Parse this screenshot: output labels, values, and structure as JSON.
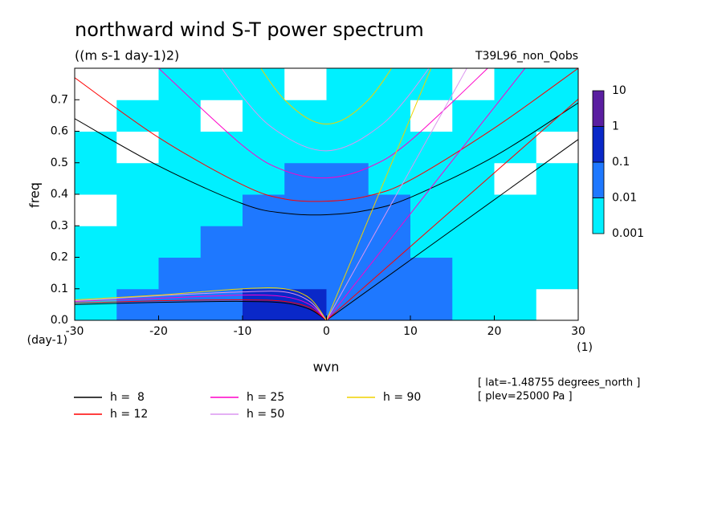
{
  "chart_data": {
    "type": "contour",
    "title": "northward wind S-T power spectrum",
    "subtitle": "((m s-1 day-1)2)",
    "run_label": "T39L96_non_Qobs",
    "x_label": "wvn",
    "x_unit": "(1)",
    "y_label": "freq",
    "y_unit": "(day-1)",
    "xlim": [
      -30,
      30
    ],
    "xticks": [
      -30,
      -20,
      -10,
      0,
      10,
      20,
      30
    ],
    "ylim": [
      0,
      0.8
    ],
    "yticks": [
      {
        "value": 0,
        "label": "0.0"
      },
      0.1,
      0.2,
      0.3,
      0.4,
      0.5,
      0.6,
      0.7
    ],
    "x": [
      -27.5,
      -22.5,
      -17.5,
      -12.5,
      -7.5,
      -2.5,
      2.5,
      7.5,
      12.5,
      17.5,
      22.5,
      27.5
    ],
    "y": [
      0.05,
      0.15,
      0.25,
      0.35,
      0.45,
      0.55,
      0.65,
      0.75
    ],
    "z": [
      [
        0.005,
        0.02,
        0.05,
        0.05,
        0.5,
        0.5,
        0.05,
        0.05,
        0.02,
        0.005,
        0.005,
        0.0005
      ],
      [
        0.005,
        0.005,
        0.02,
        0.05,
        0.05,
        0.05,
        0.05,
        0.05,
        0.02,
        0.005,
        0.005,
        0.005
      ],
      [
        0.005,
        0.005,
        0.005,
        0.02,
        0.05,
        0.05,
        0.05,
        0.05,
        0.005,
        0.005,
        0.005,
        0.005
      ],
      [
        0.0005,
        0.005,
        0.005,
        0.005,
        0.02,
        0.05,
        0.05,
        0.02,
        0.005,
        0.005,
        0.005,
        0.005
      ],
      [
        0.005,
        0.005,
        0.005,
        0.005,
        0.005,
        0.02,
        0.02,
        0.005,
        0.005,
        0.005,
        0.0005,
        0.005
      ],
      [
        0.005,
        0.0005,
        0.005,
        0.005,
        0.005,
        0.005,
        0.005,
        0.005,
        0.005,
        0.005,
        0.005,
        0.0005
      ],
      [
        0.0005,
        0.005,
        0.005,
        0.0005,
        0.005,
        0.005,
        0.005,
        0.005,
        0.0005,
        0.005,
        0.005,
        0.005
      ],
      [
        0.0005,
        0.0005,
        0.005,
        0.005,
        0.005,
        0.0005,
        0.005,
        0.005,
        0.005,
        0.0005,
        0.005,
        0.005
      ]
    ],
    "levels": [
      0.001,
      0.01,
      0.1,
      1,
      10
    ],
    "level_colors": [
      "#00f0ff",
      "#1e78ff",
      "#0a28c8",
      "#5a1ea0"
    ],
    "series": [
      {
        "name": "h =  8",
        "color": "#000000",
        "er": {
          "x": [
            -30,
            -20,
            -10,
            -5,
            -2,
            0
          ],
          "values": [
            0.05,
            0.057,
            0.06,
            0.055,
            0.035,
            0
          ]
        },
        "ig": {
          "x": [
            -30,
            -20,
            -10,
            -5,
            0,
            5,
            10,
            20,
            30
          ],
          "values": [
            0.64,
            0.49,
            0.37,
            0.34,
            0.335,
            0.35,
            0.39,
            0.52,
            0.69
          ]
        },
        "kelvin": {
          "x": [
            0,
            30
          ],
          "values": [
            0,
            0.574
          ]
        }
      },
      {
        "name": "h = 12",
        "color": "#ff0000",
        "er": {
          "x": [
            -30,
            -20,
            -10,
            -5,
            -2,
            0
          ],
          "values": [
            0.055,
            0.062,
            0.065,
            0.06,
            0.04,
            0
          ]
        },
        "ig": {
          "x": [
            -30,
            -20,
            -10,
            -5,
            0,
            5,
            10,
            20,
            30
          ],
          "values": [
            0.77,
            0.58,
            0.43,
            0.385,
            0.378,
            0.395,
            0.445,
            0.61,
            0.8
          ]
        },
        "kelvin": {
          "x": [
            0,
            30
          ],
          "values": [
            0,
            0.702
          ]
        }
      },
      {
        "name": "h = 25",
        "color": "#ff00c8",
        "er": {
          "x": [
            -30,
            -20,
            -10,
            -5,
            -2,
            0
          ],
          "values": [
            0.06,
            0.07,
            0.08,
            0.075,
            0.05,
            0
          ]
        },
        "ig": {
          "x": [
            -20,
            -10,
            -5,
            0,
            5,
            10,
            20
          ],
          "values": [
            0.8,
            0.555,
            0.475,
            0.452,
            0.485,
            0.57,
            0.82
          ]
        },
        "kelvin": {
          "x": [
            0,
            30
          ],
          "values": [
            0,
            1.014
          ]
        }
      },
      {
        "name": "h = 50",
        "color": "#dc96f0",
        "er": {
          "x": [
            -30,
            -20,
            -10,
            -5,
            -2,
            0
          ],
          "values": [
            0.062,
            0.078,
            0.09,
            0.09,
            0.06,
            0
          ]
        },
        "ig": {
          "x": [
            -20,
            -10,
            -5,
            0,
            5,
            10,
            20
          ],
          "values": [
            1.09,
            0.71,
            0.585,
            0.538,
            0.59,
            0.72,
            1.1
          ]
        },
        "kelvin": {
          "x": [
            0,
            30
          ],
          "values": [
            0,
            1.434
          ]
        }
      },
      {
        "name": "h = 90",
        "color": "#f0d200",
        "er": {
          "x": [
            -30,
            -20,
            -10,
            -5,
            -2,
            0
          ],
          "values": [
            0.065,
            0.08,
            0.1,
            0.1,
            0.07,
            0
          ]
        },
        "ig": {
          "x": [
            -10,
            -5,
            0,
            5,
            10
          ],
          "values": [
            0.89,
            0.7,
            0.623,
            0.7,
            0.895
          ]
        },
        "kelvin": {
          "x": [
            0,
            30
          ],
          "values": [
            0,
            1.926
          ]
        }
      }
    ],
    "annotations": [
      "[ lat=-1.48755 degrees_north ]",
      "[ plev=25000 Pa ]"
    ]
  }
}
